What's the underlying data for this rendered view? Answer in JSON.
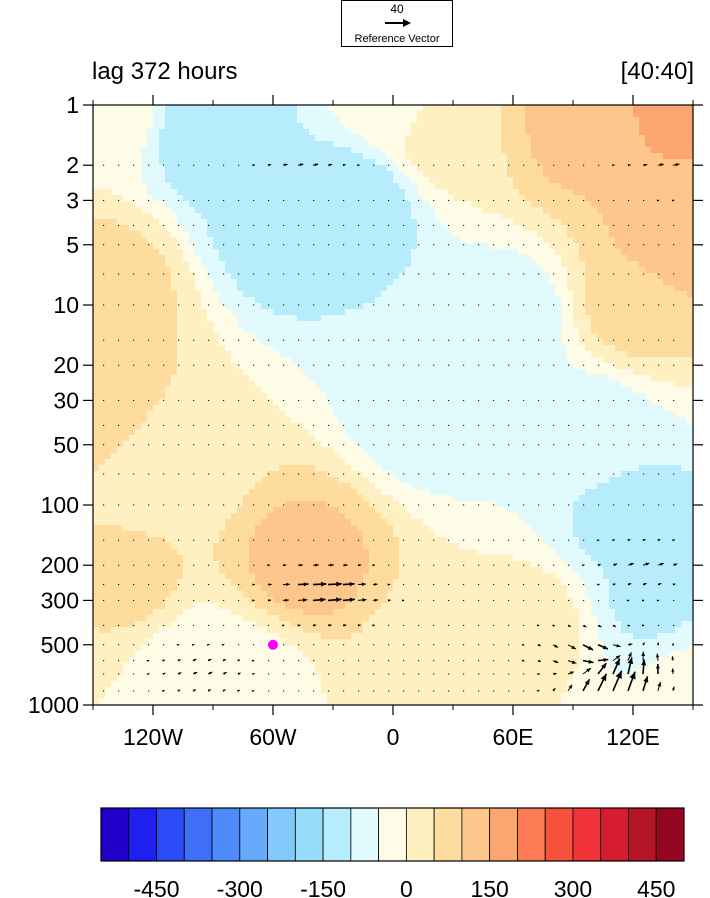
{
  "chart_data": {
    "type": "heatmap",
    "title_left": "lag 372 hours",
    "title_right": "[40:40]",
    "reference_vector": {
      "value": "40",
      "label": "Reference Vector"
    },
    "x_axis": {
      "range": [
        -150,
        150
      ],
      "ticks": [
        -120,
        -60,
        0,
        60,
        120
      ],
      "tick_labels": [
        "120W",
        "60W",
        "0",
        "60E",
        "120E"
      ]
    },
    "y_axis": {
      "scale": "log",
      "reversed": true,
      "range": [
        1,
        1000
      ],
      "ticks": [
        1,
        2,
        3,
        5,
        10,
        20,
        30,
        50,
        100,
        200,
        300,
        500,
        1000
      ],
      "tick_labels": [
        "1",
        "2",
        "3",
        "5",
        "10",
        "20",
        "30",
        "50",
        "100",
        "200",
        "300",
        "500",
        "1000"
      ]
    },
    "colorbar": {
      "levels": [
        -500,
        -450,
        -400,
        -350,
        -300,
        -250,
        -200,
        -150,
        -100,
        -50,
        0,
        50,
        100,
        150,
        200,
        250,
        300,
        350,
        400,
        450,
        500
      ],
      "colors": [
        "#2000c8",
        "#1f1ff0",
        "#2b4bf6",
        "#3f6ff8",
        "#4f8bfa",
        "#67a9fb",
        "#83c9fb",
        "#98dcfc",
        "#b6ecfc",
        "#e0fafd",
        "#fefce6",
        "#fef0c1",
        "#fedc9d",
        "#fdc68c",
        "#fca66f",
        "#fb7b54",
        "#f8523f",
        "#f1343a",
        "#d81c30",
        "#b41527",
        "#94061f"
      ],
      "tick_values": [
        -450,
        -300,
        -150,
        0,
        150,
        300,
        450
      ],
      "tick_labels": [
        "-450",
        "-300",
        "-150",
        "0",
        "150",
        "300",
        "450"
      ]
    },
    "field_features": [
      {
        "x": -145,
        "p": 1,
        "value": -10
      },
      {
        "x": -90,
        "p": 1.3,
        "value": -140
      },
      {
        "x": -55,
        "p": 4,
        "value": -130
      },
      {
        "x": -20,
        "p": 3,
        "value": -140
      },
      {
        "x": 0,
        "p": 1,
        "value": -30
      },
      {
        "x": 25,
        "p": 1.3,
        "value": 40
      },
      {
        "x": 95,
        "p": 1.2,
        "value": 120
      },
      {
        "x": 140,
        "p": 1,
        "value": 160
      },
      {
        "x": 140,
        "p": 5,
        "value": 130
      },
      {
        "x": 120,
        "p": 10,
        "value": 70
      },
      {
        "x": -145,
        "p": 30,
        "value": 80
      },
      {
        "x": -142,
        "p": 8,
        "value": 70
      },
      {
        "x": -110,
        "p": 60,
        "value": 10
      },
      {
        "x": 20,
        "p": 30,
        "value": -90
      },
      {
        "x": 60,
        "p": 12,
        "value": -80
      },
      {
        "x": 100,
        "p": 40,
        "value": -70
      },
      {
        "x": 120,
        "p": 120,
        "value": -120
      },
      {
        "x": 130,
        "p": 300,
        "value": -110
      },
      {
        "x": -45,
        "p": 200,
        "value": 120
      },
      {
        "x": -130,
        "p": 250,
        "value": 60
      },
      {
        "x": -100,
        "p": 600,
        "value": -30
      },
      {
        "x": -70,
        "p": 700,
        "value": -15
      },
      {
        "x": 20,
        "p": 600,
        "value": 25
      },
      {
        "x": 70,
        "p": 400,
        "value": 20
      },
      {
        "x": 145,
        "p": 800,
        "value": -40
      }
    ],
    "vector_features": [
      {
        "x": -38,
        "p": 250,
        "u": 9,
        "v": 0
      },
      {
        "x": -30,
        "p": 300,
        "u": 8,
        "v": 1
      },
      {
        "x": 125,
        "p": 200,
        "u": 6,
        "v": 2
      },
      {
        "x": 110,
        "p": 850,
        "u": 9,
        "v": 18
      },
      {
        "x": 120,
        "p": 650,
        "u": -5,
        "v": 10
      },
      {
        "x": 100,
        "p": 550,
        "u": 12,
        "v": -8
      },
      {
        "x": 140,
        "p": 2,
        "u": 6,
        "v": 1
      },
      {
        "x": -45,
        "p": 2,
        "u": 5,
        "v": 1
      },
      {
        "x": -95,
        "p": 700,
        "u": 4,
        "v": 2
      }
    ],
    "marker": {
      "x": -60,
      "p": 500,
      "color": "#ff00ff"
    }
  }
}
